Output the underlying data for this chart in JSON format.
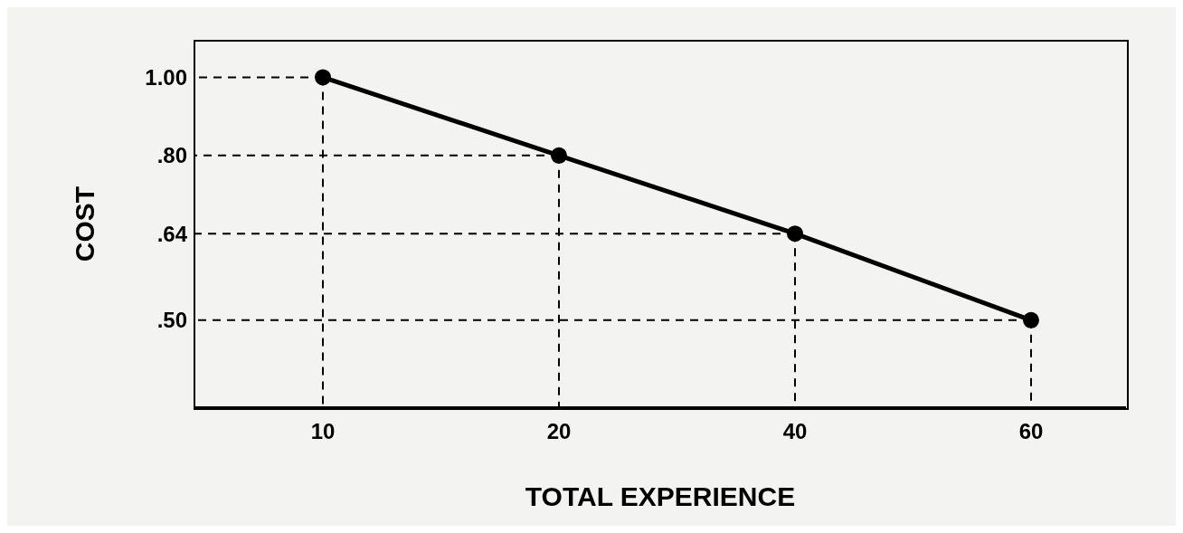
{
  "chart_data": {
    "type": "line",
    "xlabel": "TOTAL EXPERIENCE",
    "ylabel": "COST",
    "categories": [
      "10",
      "20",
      "40",
      "60"
    ],
    "series": [
      {
        "color": "#000000",
        "values": [
          1.0,
          0.8,
          0.64,
          0.5
        ]
      }
    ],
    "log": "y",
    "ylim": [
      0.39,
      1.11
    ],
    "yticks": [
      {
        "value": 0.5,
        "label": ".50"
      },
      {
        "value": 0.64,
        "label": ".64"
      },
      {
        "value": 0.8,
        "label": ".80"
      },
      {
        "value": 1.0,
        "label": "1.00"
      }
    ],
    "ref_lines": [
      {
        "axis": "x",
        "value": "10",
        "line_style": "dashed"
      },
      {
        "axis": "x",
        "value": "20",
        "line_style": "dashed"
      },
      {
        "axis": "x",
        "value": "40",
        "line_style": "dashed"
      },
      {
        "axis": "x",
        "value": "60",
        "line_style": "dashed"
      },
      {
        "axis": "y",
        "value": 1.0,
        "line_style": "dashed"
      },
      {
        "axis": "y",
        "value": 0.8,
        "line_style": "dashed"
      },
      {
        "axis": "y",
        "value": 0.64,
        "line_style": "dashed"
      },
      {
        "axis": "y",
        "value": 0.5,
        "line_style": "dashed"
      }
    ],
    "marker": "circle",
    "line_style": "solid",
    "grid": false,
    "legend": false
  }
}
